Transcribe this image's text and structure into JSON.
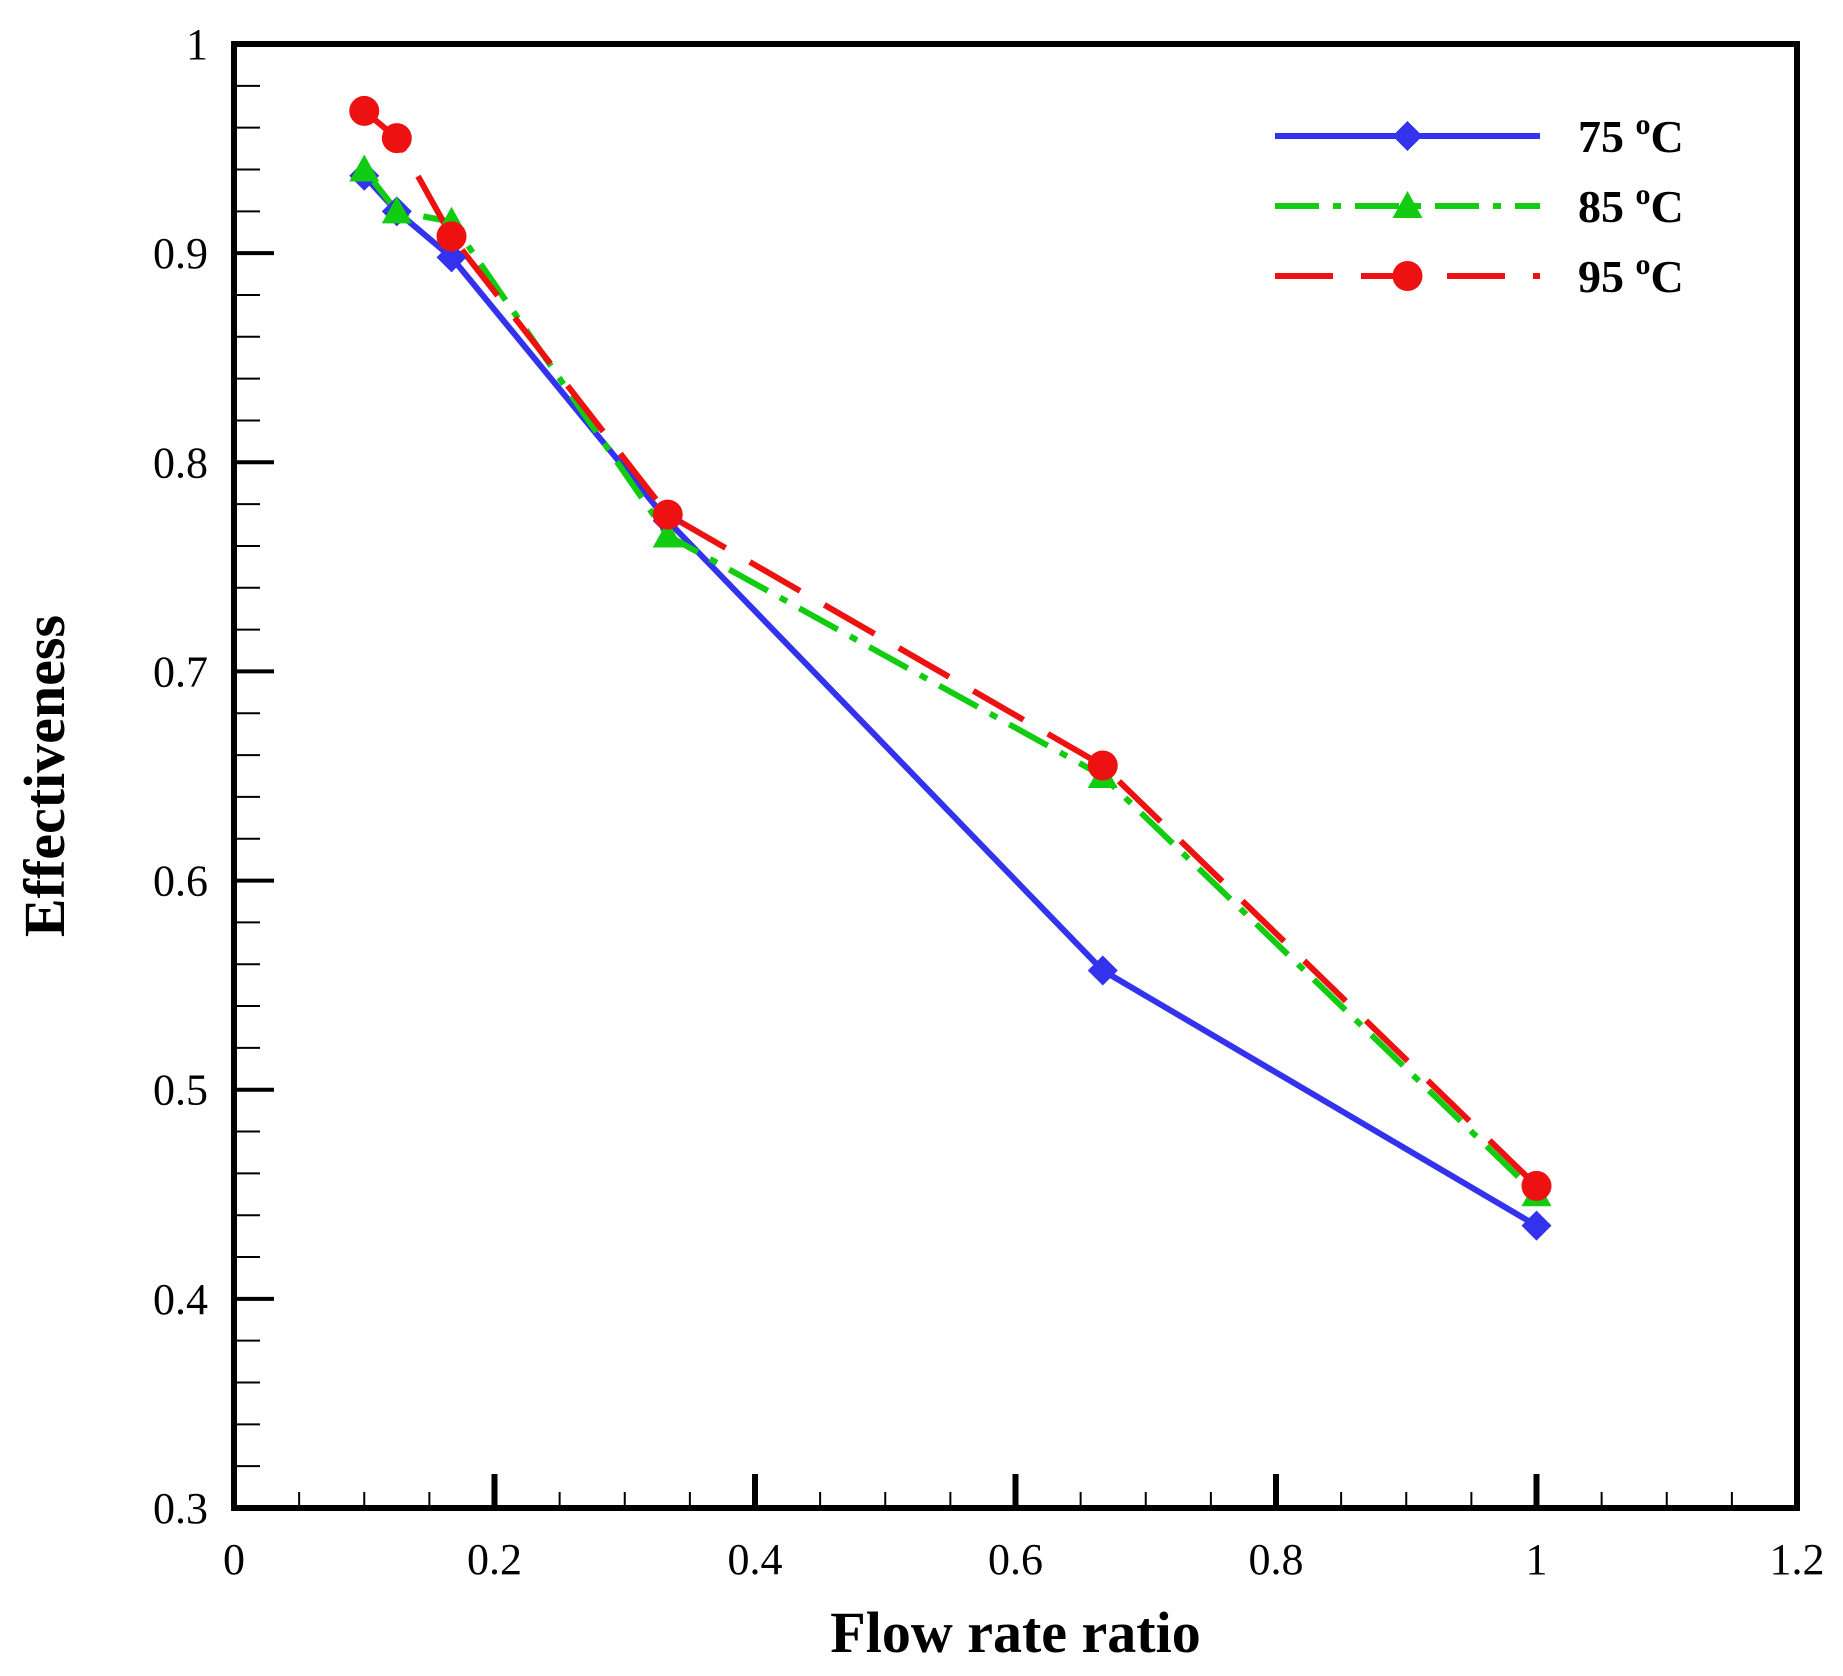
{
  "chart_data": {
    "type": "line",
    "title": "",
    "xlabel": "Flow rate ratio",
    "ylabel": "Effectiveness",
    "xlim": [
      0,
      1.2
    ],
    "ylim": [
      0.3,
      1.0
    ],
    "xticks": [
      0,
      0.2,
      0.4,
      0.6,
      0.8,
      1,
      1.2
    ],
    "xtick_labels": [
      "0",
      "0.2",
      "0.4",
      "0.6",
      "0.8",
      "1",
      "1.2"
    ],
    "yticks": [
      0.3,
      0.4,
      0.5,
      0.6,
      0.7,
      0.8,
      0.9,
      1.0
    ],
    "ytick_labels": [
      "0.3",
      "0.4",
      "0.5",
      "0.6",
      "0.7",
      "0.8",
      "0.9",
      "1"
    ],
    "x_minor_step": 0.05,
    "y_minor_step": 0.02,
    "grid": false,
    "legend_position": "top-right",
    "series": [
      {
        "name": "75 oC",
        "label_main": "75 ",
        "label_sup": "o",
        "label_unit": "C",
        "color": "#3333ee",
        "dash": "solid",
        "marker": "diamond",
        "x": [
          0.1,
          0.125,
          0.167,
          0.333,
          0.667,
          1.0
        ],
        "y": [
          0.937,
          0.92,
          0.898,
          0.772,
          0.557,
          0.435
        ]
      },
      {
        "name": "85 oC",
        "label_main": "85 ",
        "label_sup": "o",
        "label_unit": "C",
        "color": "#11cc11",
        "dash": "dashdot",
        "marker": "triangle",
        "x": [
          0.1,
          0.125,
          0.167,
          0.333,
          0.667,
          1.0
        ],
        "y": [
          0.94,
          0.92,
          0.915,
          0.765,
          0.65,
          0.45
        ]
      },
      {
        "name": "95 oC",
        "label_main": "95 ",
        "label_sup": "o",
        "label_unit": "C",
        "color": "#ee1111",
        "dash": "dashed",
        "marker": "circle",
        "x": [
          0.1,
          0.125,
          0.167,
          0.333,
          0.667,
          1.0
        ],
        "y": [
          0.968,
          0.955,
          0.908,
          0.775,
          0.655,
          0.454
        ]
      }
    ]
  }
}
